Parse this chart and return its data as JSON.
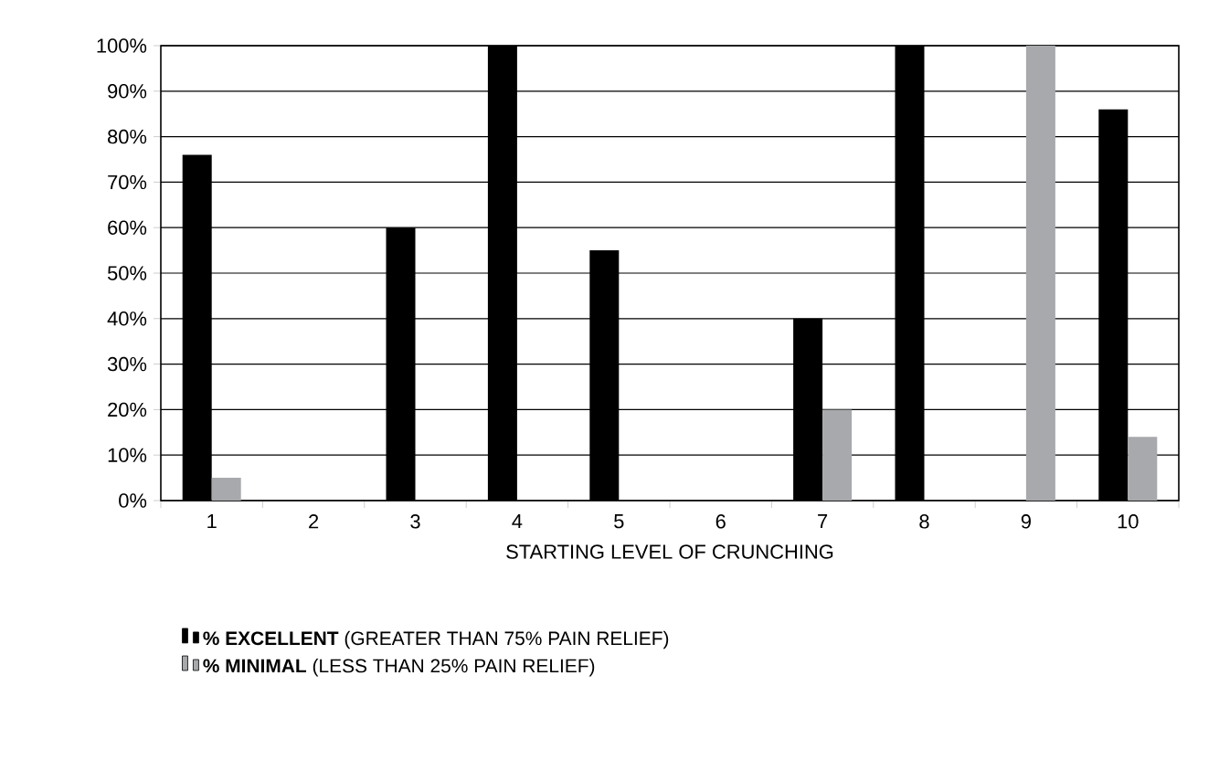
{
  "chart_data": {
    "type": "bar",
    "categories": [
      "1",
      "2",
      "3",
      "4",
      "5",
      "6",
      "7",
      "8",
      "9",
      "10"
    ],
    "xlabel": "STARTING LEVEL OF CRUNCHING",
    "series": [
      {
        "name": "**% EXCELLENT** (GREATER THAN 75% PAIN RELIEF)",
        "color": "#000000",
        "values": [
          76,
          0,
          60,
          100,
          55,
          0,
          40,
          100,
          0,
          86
        ]
      },
      {
        "name": "**% MINIMAL** (LESS THAN 25% PAIN RELIEF)",
        "color": "#a7a9ac",
        "values": [
          5,
          0,
          0,
          0,
          0,
          0,
          20,
          0,
          100,
          14
        ]
      }
    ],
    "ylim": [
      0,
      100
    ],
    "yticks": [
      {
        "value": 0,
        "label": "0%"
      },
      {
        "value": 10,
        "label": "10%"
      },
      {
        "value": 20,
        "label": "20%"
      },
      {
        "value": 30,
        "label": "30%"
      },
      {
        "value": 40,
        "label": "40%"
      },
      {
        "value": 50,
        "label": "50%"
      },
      {
        "value": 60,
        "label": "60%"
      },
      {
        "value": 70,
        "label": "70%"
      },
      {
        "value": 80,
        "label": "80%"
      },
      {
        "value": 90,
        "label": "90%"
      },
      {
        "value": 100,
        "label": "100%"
      }
    ],
    "grid": "y",
    "legend": "bottom"
  }
}
